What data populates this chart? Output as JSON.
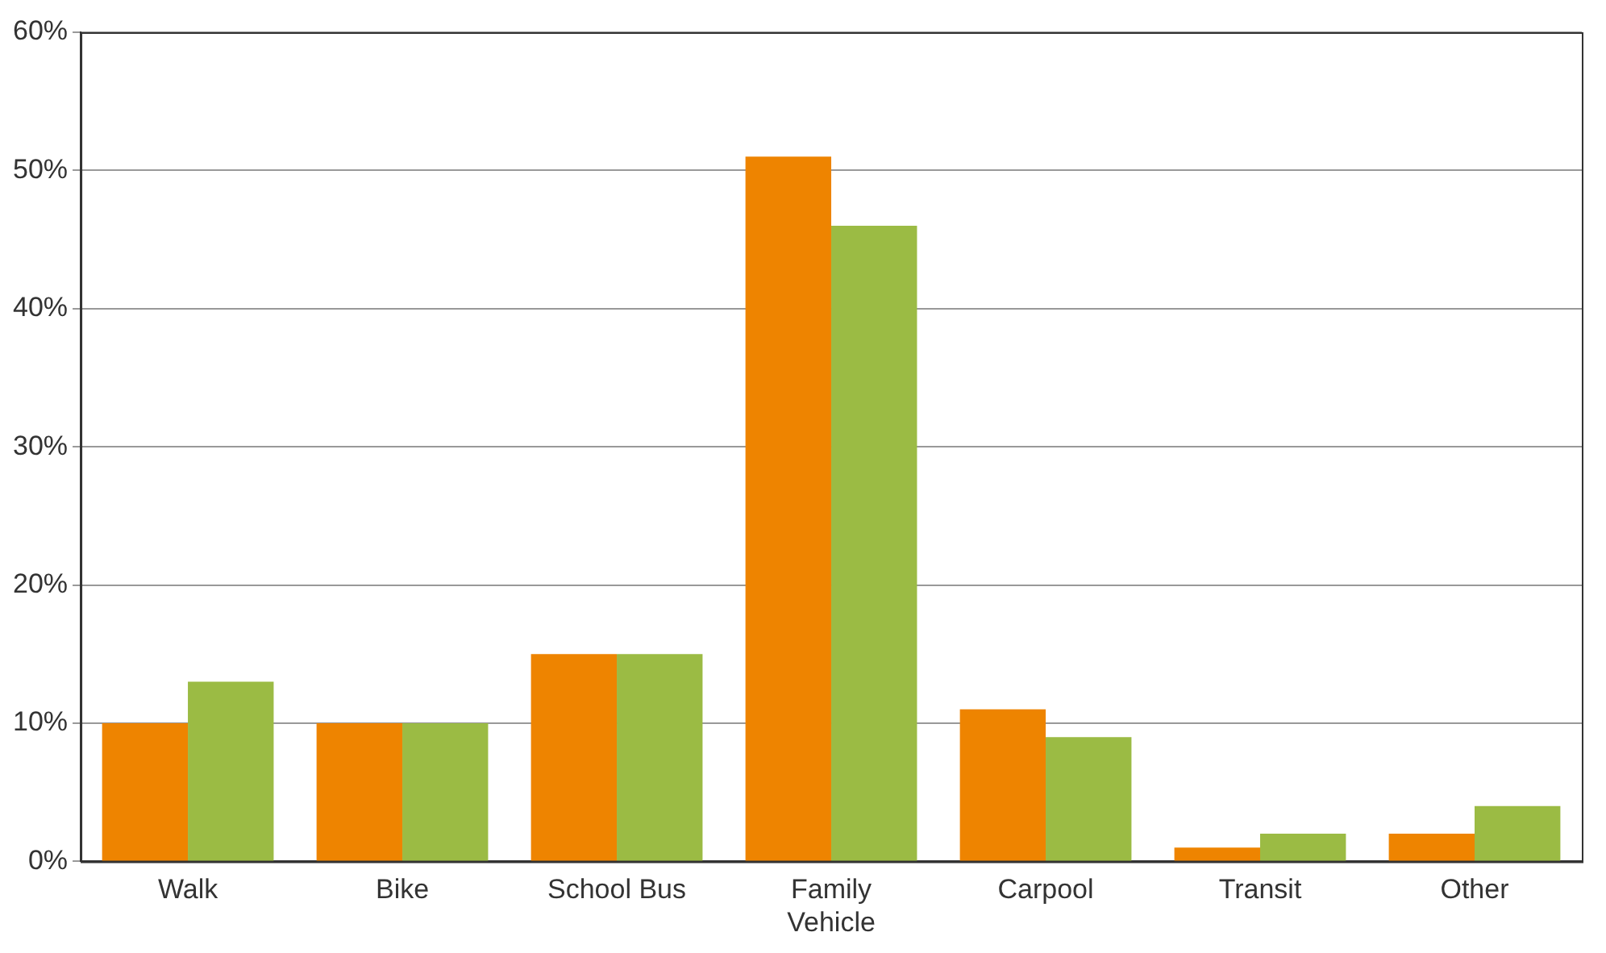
{
  "chart_data": {
    "type": "bar",
    "categories": [
      "Walk",
      "Bike",
      "School Bus",
      "Family Vehicle",
      "Carpool",
      "Transit",
      "Other"
    ],
    "series": [
      {
        "color": "#ee8400",
        "values": [
          10,
          10,
          15,
          51,
          11,
          1,
          2
        ]
      },
      {
        "color": "#9bbb44",
        "values": [
          13,
          10,
          15,
          46,
          9,
          2,
          4
        ]
      }
    ],
    "ylim": [
      0,
      60
    ],
    "yticks": [
      {
        "value": 0,
        "label": "0%"
      },
      {
        "value": 10,
        "label": "10%"
      },
      {
        "value": 20,
        "label": "20%"
      },
      {
        "value": 30,
        "label": "30%"
      },
      {
        "value": 40,
        "label": "40%"
      },
      {
        "value": 50,
        "label": "50%"
      },
      {
        "value": 60,
        "label": "60%"
      }
    ],
    "grid": "y",
    "legend": false
  }
}
